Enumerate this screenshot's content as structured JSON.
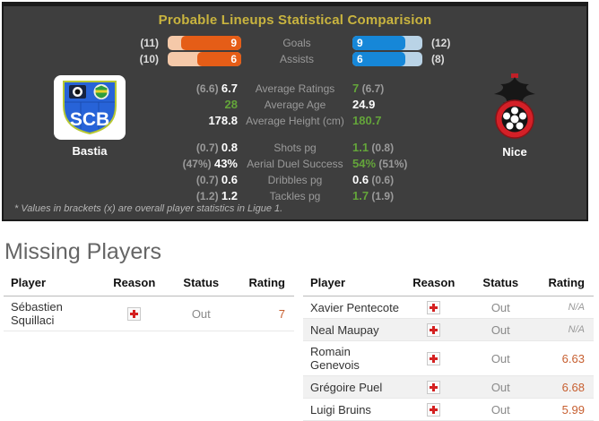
{
  "panel": {
    "title": "Probable Lineups Statistical Comparision",
    "footnote": "* Values in brackets (x) are overall player statistics in Ligue 1.",
    "colors": {
      "panel_bg": "#3e3e3e",
      "title_gold": "#c9b43f",
      "better_green": "#64a53a",
      "home_bar_dark": "#e55d17",
      "home_bar_light": "#f5c9a9",
      "away_bar_dark": "#1687d8",
      "away_bar_light": "#b9d3e6"
    },
    "home": {
      "name": "Bastia",
      "logo_text": "SCB"
    },
    "away": {
      "name": "Nice"
    },
    "versus_bars": [
      {
        "label": "Goals",
        "home_overall": "(11)",
        "home_value": "9",
        "home_pct": 82,
        "away_value": "9",
        "away_overall": "(12)",
        "away_pct": 75
      },
      {
        "label": "Assists",
        "home_overall": "(10)",
        "home_value": "6",
        "home_pct": 60,
        "away_value": "6",
        "away_overall": "(8)",
        "away_pct": 75
      }
    ],
    "stats_group1": [
      {
        "label": "Average Ratings",
        "home_bracket": "(6.6)",
        "home": "6.7",
        "home_color": "white",
        "away": "7",
        "away_bracket": "(6.7)",
        "away_color": "green"
      },
      {
        "label": "Average Age",
        "home_bracket": "",
        "home": "28",
        "home_color": "green",
        "away": "24.9",
        "away_bracket": "",
        "away_color": "white"
      },
      {
        "label": "Average Height (cm)",
        "home_bracket": "",
        "home": "178.8",
        "home_color": "white",
        "away": "180.7",
        "away_bracket": "",
        "away_color": "green"
      }
    ],
    "stats_group2": [
      {
        "label": "Shots pg",
        "home_bracket": "(0.7)",
        "home": "0.8",
        "home_color": "white",
        "away": "1.1",
        "away_bracket": "(0.8)",
        "away_color": "green"
      },
      {
        "label": "Aerial Duel Success",
        "home_bracket": "(47%)",
        "home": "43%",
        "home_color": "white",
        "away": "54%",
        "away_bracket": "(51%)",
        "away_color": "green"
      },
      {
        "label": "Dribbles pg",
        "home_bracket": "(0.7)",
        "home": "0.6",
        "home_color": "white",
        "away": "0.6",
        "away_bracket": "(0.6)",
        "away_color": "white"
      },
      {
        "label": "Tackles pg",
        "home_bracket": "(1.2)",
        "home": "1.2",
        "home_color": "white",
        "away": "1.7",
        "away_bracket": "(1.9)",
        "away_color": "green"
      }
    ]
  },
  "missing_players": {
    "heading": "Missing Players",
    "columns": {
      "player": "Player",
      "reason": "Reason",
      "status": "Status",
      "rating": "Rating"
    },
    "home_rows": [
      {
        "player": "Sébastien Squillaci",
        "reason_icon": "injury-cross",
        "status": "Out",
        "rating": "7",
        "rating_class": "num"
      }
    ],
    "away_rows": [
      {
        "player": "Xavier Pentecote",
        "reason_icon": "injury-cross",
        "status": "Out",
        "rating": "N/A",
        "rating_class": "na"
      },
      {
        "player": "Neal Maupay",
        "reason_icon": "injury-cross",
        "status": "Out",
        "rating": "N/A",
        "rating_class": "na"
      },
      {
        "player": "Romain Genevois",
        "reason_icon": "injury-cross",
        "status": "Out",
        "rating": "6.63",
        "rating_class": "num"
      },
      {
        "player": "Grégoire Puel",
        "reason_icon": "injury-cross",
        "status": "Out",
        "rating": "6.68",
        "rating_class": "num"
      },
      {
        "player": "Luigi Bruins",
        "reason_icon": "injury-cross",
        "status": "Out",
        "rating": "5.99",
        "rating_class": "num"
      }
    ]
  }
}
